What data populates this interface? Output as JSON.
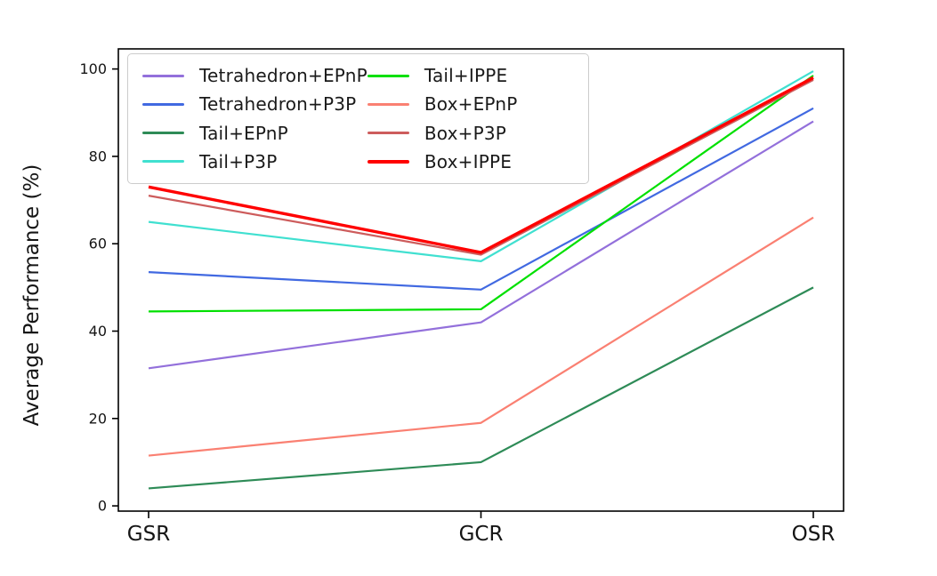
{
  "chart_data": {
    "type": "line",
    "title": "",
    "xlabel": "",
    "ylabel": "Average Performance (%)",
    "categories": [
      "GSR",
      "GCR",
      "OSR"
    ],
    "yticks": [
      0,
      20,
      40,
      60,
      80,
      100
    ],
    "ylim": [
      -1.2,
      104.6
    ],
    "grid": false,
    "legend_position": "upper left",
    "legend_columns": 2,
    "series": [
      {
        "name": "Tetrahedron+EPnP",
        "color": "#9370DB",
        "linewidth": 2.2,
        "values": [
          31.5,
          42,
          88
        ]
      },
      {
        "name": "Tetrahedron+P3P",
        "color": "#4169E1",
        "linewidth": 2.2,
        "values": [
          53.5,
          49.5,
          91
        ]
      },
      {
        "name": "Tail+EPnP",
        "color": "#2E8B57",
        "linewidth": 2.2,
        "values": [
          4,
          10,
          50
        ]
      },
      {
        "name": "Tail+P3P",
        "color": "#40E0D0",
        "linewidth": 2.2,
        "values": [
          65,
          56,
          99.5
        ]
      },
      {
        "name": "Tail+IPPE",
        "color": "#00E000",
        "linewidth": 2.2,
        "values": [
          44.5,
          45,
          98.5
        ]
      },
      {
        "name": "Box+EPnP",
        "color": "#FA8072",
        "linewidth": 2.2,
        "values": [
          11.5,
          19,
          66
        ]
      },
      {
        "name": "Box+P3P",
        "color": "#CD5C5C",
        "linewidth": 2.2,
        "values": [
          71,
          57.5,
          97.5
        ]
      },
      {
        "name": "Box+IPPE",
        "color": "#FF0000",
        "linewidth": 3.4,
        "values": [
          73,
          58,
          98
        ]
      }
    ]
  }
}
